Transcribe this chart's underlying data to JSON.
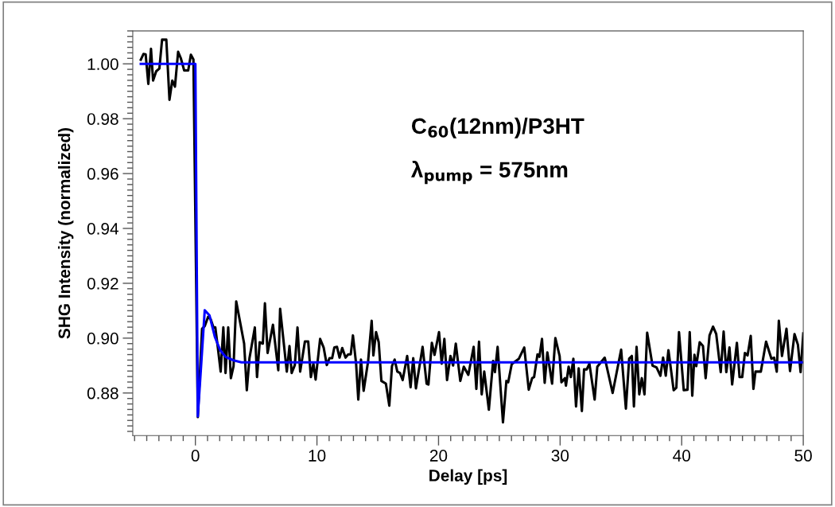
{
  "chart_data": {
    "type": "line",
    "xlabel": "Delay [ps]",
    "ylabel": "SHG Intensity (normalized)",
    "annotations": [
      "C$_{60}$(12nm)/P3HT",
      "λ$_{pump}$ = 575nm"
    ],
    "xlim": [
      -5.15,
      50
    ],
    "ylim": [
      0.8645,
      1.012
    ],
    "xticks": [
      0,
      10,
      20,
      30,
      40,
      50,
      {
        "value": -5,
        "label": null
      },
      {
        "value": -4,
        "label": null
      },
      {
        "value": -3,
        "label": null
      },
      {
        "value": -2,
        "label": null
      },
      {
        "value": -1,
        "label": null
      },
      {
        "value": 1,
        "label": null
      },
      {
        "value": 2,
        "label": null
      },
      {
        "value": 3,
        "label": null
      },
      {
        "value": 4,
        "label": null
      },
      {
        "value": 5,
        "label": null
      },
      {
        "value": 6,
        "label": null
      },
      {
        "value": 7,
        "label": null
      },
      {
        "value": 8,
        "label": null
      },
      {
        "value": 9,
        "label": null
      },
      {
        "value": 11,
        "label": null
      },
      {
        "value": 12,
        "label": null
      },
      {
        "value": 13,
        "label": null
      },
      {
        "value": 14,
        "label": null
      },
      {
        "value": 15,
        "label": null
      },
      {
        "value": 16,
        "label": null
      },
      {
        "value": 17,
        "label": null
      },
      {
        "value": 18,
        "label": null
      },
      {
        "value": 19,
        "label": null
      },
      {
        "value": 21,
        "label": null
      },
      {
        "value": 22,
        "label": null
      },
      {
        "value": 23,
        "label": null
      },
      {
        "value": 24,
        "label": null
      },
      {
        "value": 25,
        "label": null
      },
      {
        "value": 26,
        "label": null
      },
      {
        "value": 27,
        "label": null
      },
      {
        "value": 28,
        "label": null
      },
      {
        "value": 29,
        "label": null
      },
      {
        "value": 31,
        "label": null
      },
      {
        "value": 32,
        "label": null
      },
      {
        "value": 33,
        "label": null
      },
      {
        "value": 34,
        "label": null
      },
      {
        "value": 35,
        "label": null
      },
      {
        "value": 36,
        "label": null
      },
      {
        "value": 37,
        "label": null
      },
      {
        "value": 38,
        "label": null
      },
      {
        "value": 39,
        "label": null
      },
      {
        "value": 41,
        "label": null
      },
      {
        "value": 42,
        "label": null
      },
      {
        "value": 43,
        "label": null
      },
      {
        "value": 44,
        "label": null
      },
      {
        "value": 45,
        "label": null
      },
      {
        "value": 46,
        "label": null
      },
      {
        "value": 47,
        "label": null
      },
      {
        "value": 48,
        "label": null
      },
      {
        "value": 49,
        "label": null
      }
    ],
    "yticks": [
      {
        "value": 0.88,
        "label": "0.88"
      },
      {
        "value": 0.9,
        "label": "0.90"
      },
      {
        "value": 0.92,
        "label": "0.92"
      },
      {
        "value": 0.94,
        "label": "0.94"
      },
      {
        "value": 0.96,
        "label": "0.96"
      },
      {
        "value": 0.98,
        "label": "0.98"
      },
      {
        "value": 1.0,
        "label": "1.00"
      },
      {
        "value": 0.866,
        "label": null
      },
      {
        "value": 0.868,
        "label": null
      },
      {
        "value": 0.87,
        "label": null
      },
      {
        "value": 0.872,
        "label": null
      },
      {
        "value": 0.874,
        "label": null
      },
      {
        "value": 0.876,
        "label": null
      },
      {
        "value": 0.878,
        "label": null
      },
      {
        "value": 0.882,
        "label": null
      },
      {
        "value": 0.884,
        "label": null
      },
      {
        "value": 0.886,
        "label": null
      },
      {
        "value": 0.888,
        "label": null
      },
      {
        "value": 0.89,
        "label": null
      },
      {
        "value": 0.892,
        "label": null
      },
      {
        "value": 0.894,
        "label": null
      },
      {
        "value": 0.896,
        "label": null
      },
      {
        "value": 0.898,
        "label": null
      },
      {
        "value": 0.902,
        "label": null
      },
      {
        "value": 0.904,
        "label": null
      },
      {
        "value": 0.906,
        "label": null
      },
      {
        "value": 0.908,
        "label": null
      },
      {
        "value": 0.91,
        "label": null
      },
      {
        "value": 0.912,
        "label": null
      },
      {
        "value": 0.914,
        "label": null
      },
      {
        "value": 0.916,
        "label": null
      },
      {
        "value": 0.918,
        "label": null
      },
      {
        "value": 0.922,
        "label": null
      },
      {
        "value": 0.924,
        "label": null
      },
      {
        "value": 0.926,
        "label": null
      },
      {
        "value": 0.928,
        "label": null
      },
      {
        "value": 0.93,
        "label": null
      },
      {
        "value": 0.932,
        "label": null
      },
      {
        "value": 0.934,
        "label": null
      },
      {
        "value": 0.936,
        "label": null
      },
      {
        "value": 0.938,
        "label": null
      },
      {
        "value": 0.942,
        "label": null
      },
      {
        "value": 0.944,
        "label": null
      },
      {
        "value": 0.946,
        "label": null
      },
      {
        "value": 0.948,
        "label": null
      },
      {
        "value": 0.95,
        "label": null
      },
      {
        "value": 0.952,
        "label": null
      },
      {
        "value": 0.954,
        "label": null
      },
      {
        "value": 0.956,
        "label": null
      },
      {
        "value": 0.958,
        "label": null
      },
      {
        "value": 0.962,
        "label": null
      },
      {
        "value": 0.964,
        "label": null
      },
      {
        "value": 0.966,
        "label": null
      },
      {
        "value": 0.968,
        "label": null
      },
      {
        "value": 0.97,
        "label": null
      },
      {
        "value": 0.972,
        "label": null
      },
      {
        "value": 0.974,
        "label": null
      },
      {
        "value": 0.976,
        "label": null
      },
      {
        "value": 0.978,
        "label": null
      },
      {
        "value": 0.982,
        "label": null
      },
      {
        "value": 0.984,
        "label": null
      },
      {
        "value": 0.986,
        "label": null
      },
      {
        "value": 0.988,
        "label": null
      },
      {
        "value": 0.99,
        "label": null
      },
      {
        "value": 0.992,
        "label": null
      },
      {
        "value": 0.994,
        "label": null
      },
      {
        "value": 0.996,
        "label": null
      },
      {
        "value": 0.998,
        "label": null
      },
      {
        "value": 1.002,
        "label": null
      },
      {
        "value": 1.004,
        "label": null
      },
      {
        "value": 1.006,
        "label": null
      },
      {
        "value": 1.008,
        "label": null
      },
      {
        "value": 1.01,
        "label": null
      },
      {
        "value": 1.012,
        "label": null
      }
    ],
    "grid": false,
    "marker": "none",
    "line_style": "solid",
    "series": [
      {
        "color": "#000000",
        "x": [
          -4.49,
          -4.27,
          -4.09,
          -3.87,
          -3.65,
          -3.48,
          -3.22,
          -2.96,
          -2.74,
          -2.39,
          -2.13,
          -1.9,
          -1.68,
          -1.42,
          -1.2,
          -0.92,
          -0.59,
          -0.37,
          -0.16,
          0.2,
          0.55,
          0.77,
          1.05,
          1.27,
          1.49,
          1.64,
          1.86,
          2.08,
          2.3,
          2.48,
          2.7,
          2.92,
          3.14,
          3.36,
          4.01,
          4.23,
          4.45,
          4.89,
          5.07,
          5.29,
          5.55,
          5.72,
          5.94,
          6.38,
          6.82,
          6.97,
          7.52,
          7.74,
          7.92,
          8.18,
          8.4,
          8.62,
          9.01,
          9.28,
          9.5,
          9.71,
          9.89,
          10.26,
          10.55,
          10.81,
          11.03,
          11.25,
          11.43,
          11.65,
          11.86,
          12.08,
          12.35,
          12.57,
          12.78,
          12.96,
          13.22,
          13.4,
          13.62,
          13.84,
          14.21,
          14.5,
          14.64,
          14.86,
          15.08,
          15.3,
          15.67,
          15.95,
          16.17,
          16.39,
          16.61,
          16.83,
          17.05,
          17.42,
          17.7,
          17.92,
          18.14,
          18.69,
          19.02,
          19.17,
          19.45,
          19.67,
          20.04,
          20.26,
          20.48,
          20.7,
          20.98,
          21.2,
          21.42,
          21.79,
          22.08,
          22.45,
          22.89,
          23.11,
          23.33,
          23.55,
          23.76,
          24.14,
          24.49,
          24.64,
          24.86,
          25.3,
          25.58,
          25.73,
          26.02,
          26.61,
          27.05,
          27.42,
          27.7,
          27.86,
          28.14,
          28.3,
          28.51,
          28.73,
          28.95,
          29.34,
          29.61,
          29.96,
          30.11,
          30.39,
          30.48,
          30.7,
          30.88,
          31.09,
          31.31,
          31.53,
          31.79,
          31.97,
          32.19,
          32.41,
          32.84,
          33.06,
          33.67,
          34.32,
          35.02,
          35.41,
          35.68,
          35.9,
          36.07,
          36.29,
          36.51,
          36.72,
          36.94,
          37.16,
          37.6,
          37.93,
          38.25,
          38.47,
          38.69,
          38.91,
          39.34,
          39.56,
          39.78,
          40.17,
          40.48,
          40.66,
          40.87,
          41.05,
          41.2,
          41.48,
          41.75,
          41.97,
          42.29,
          42.58,
          42.84,
          43.21,
          43.45,
          43.67,
          43.93,
          44.15,
          44.54,
          44.76,
          44.98,
          45.2,
          45.42,
          45.68,
          45.9,
          46.07,
          46.51,
          46.94,
          47.38,
          47.6,
          47.82,
          47.99,
          48.25,
          48.62,
          48.91,
          49.28,
          49.56,
          49.78,
          50.0
        ],
        "values": [
          1.0015,
          1.0036,
          1.0035,
          0.9927,
          1.0055,
          0.9939,
          0.9973,
          0.9983,
          1.0088,
          1.0088,
          0.9869,
          0.9939,
          0.9917,
          1.0044,
          1.0021,
          0.9976,
          0.9976,
          1.0033,
          1.0016,
          0.8712,
          0.9034,
          0.9044,
          0.9078,
          0.9068,
          0.9039,
          0.9039,
          0.8961,
          0.8878,
          0.9039,
          0.8873,
          0.9039,
          0.8854,
          0.8898,
          0.9134,
          0.898,
          0.881,
          0.8927,
          0.9039,
          0.8858,
          0.8985,
          0.898,
          0.9127,
          0.8946,
          0.9049,
          0.8883,
          0.9107,
          0.8878,
          0.8971,
          0.8873,
          0.8902,
          0.9039,
          0.8878,
          0.8988,
          0.8988,
          0.8858,
          0.8907,
          0.8849,
          0.8997,
          0.8966,
          0.8902,
          0.8927,
          0.8927,
          0.8966,
          0.8968,
          0.8929,
          0.8964,
          0.8929,
          0.8941,
          0.8941,
          0.901,
          0.8907,
          0.8776,
          0.8922,
          0.8808,
          0.8917,
          0.9063,
          0.8937,
          0.9022,
          0.8985,
          0.8844,
          0.8834,
          0.8754,
          0.8898,
          0.8922,
          0.8878,
          0.8873,
          0.8847,
          0.8935,
          0.8821,
          0.8927,
          0.8817,
          0.8968,
          0.8834,
          0.8831,
          0.8983,
          0.8939,
          0.9022,
          0.8907,
          0.8997,
          0.8847,
          0.8935,
          0.89,
          0.898,
          0.8844,
          0.8896,
          0.8866,
          0.8968,
          0.8815,
          0.8987,
          0.8795,
          0.8878,
          0.8739,
          0.8917,
          0.8876,
          0.8968,
          0.8693,
          0.8844,
          0.8839,
          0.8905,
          0.8925,
          0.8966,
          0.8812,
          0.8854,
          0.8858,
          0.8941,
          0.8932,
          0.8997,
          0.8837,
          0.8948,
          0.8834,
          0.9,
          0.8935,
          0.8839,
          0.8854,
          0.8827,
          0.8896,
          0.8858,
          0.8925,
          0.8751,
          0.889,
          0.8734,
          0.8886,
          0.8886,
          0.8907,
          0.8776,
          0.8896,
          0.8929,
          0.88,
          0.8958,
          0.8743,
          0.8925,
          0.8935,
          0.8751,
          0.8968,
          0.8795,
          0.8854,
          0.8795,
          0.902,
          0.89,
          0.8893,
          0.8863,
          0.8929,
          0.8863,
          0.8956,
          0.881,
          0.8819,
          0.9022,
          0.881,
          0.8812,
          0.9022,
          0.879,
          0.8939,
          0.8898,
          0.8985,
          0.8971,
          0.8854,
          0.901,
          0.9042,
          0.9015,
          0.8876,
          0.9024,
          0.8876,
          0.8966,
          0.8831,
          0.8983,
          0.8858,
          0.8858,
          0.8946,
          0.8937,
          0.9008,
          0.8815,
          0.8878,
          0.8878,
          0.8987,
          0.8925,
          0.8929,
          0.8878,
          0.9063,
          0.8935,
          0.9034,
          0.888,
          0.9015,
          0.8976,
          0.8876,
          0.9017
        ]
      },
      {
        "color": "#0000ff",
        "x": [
          -4.49,
          0.0,
          0.2,
          0.77,
          1.16,
          1.6,
          2.04,
          2.48,
          3.14,
          3.79,
          50.0
        ],
        "values": [
          1.0,
          1.0,
          0.8715,
          0.9102,
          0.9083,
          0.9005,
          0.8956,
          0.8932,
          0.8919,
          0.8912,
          0.8912
        ]
      }
    ]
  }
}
